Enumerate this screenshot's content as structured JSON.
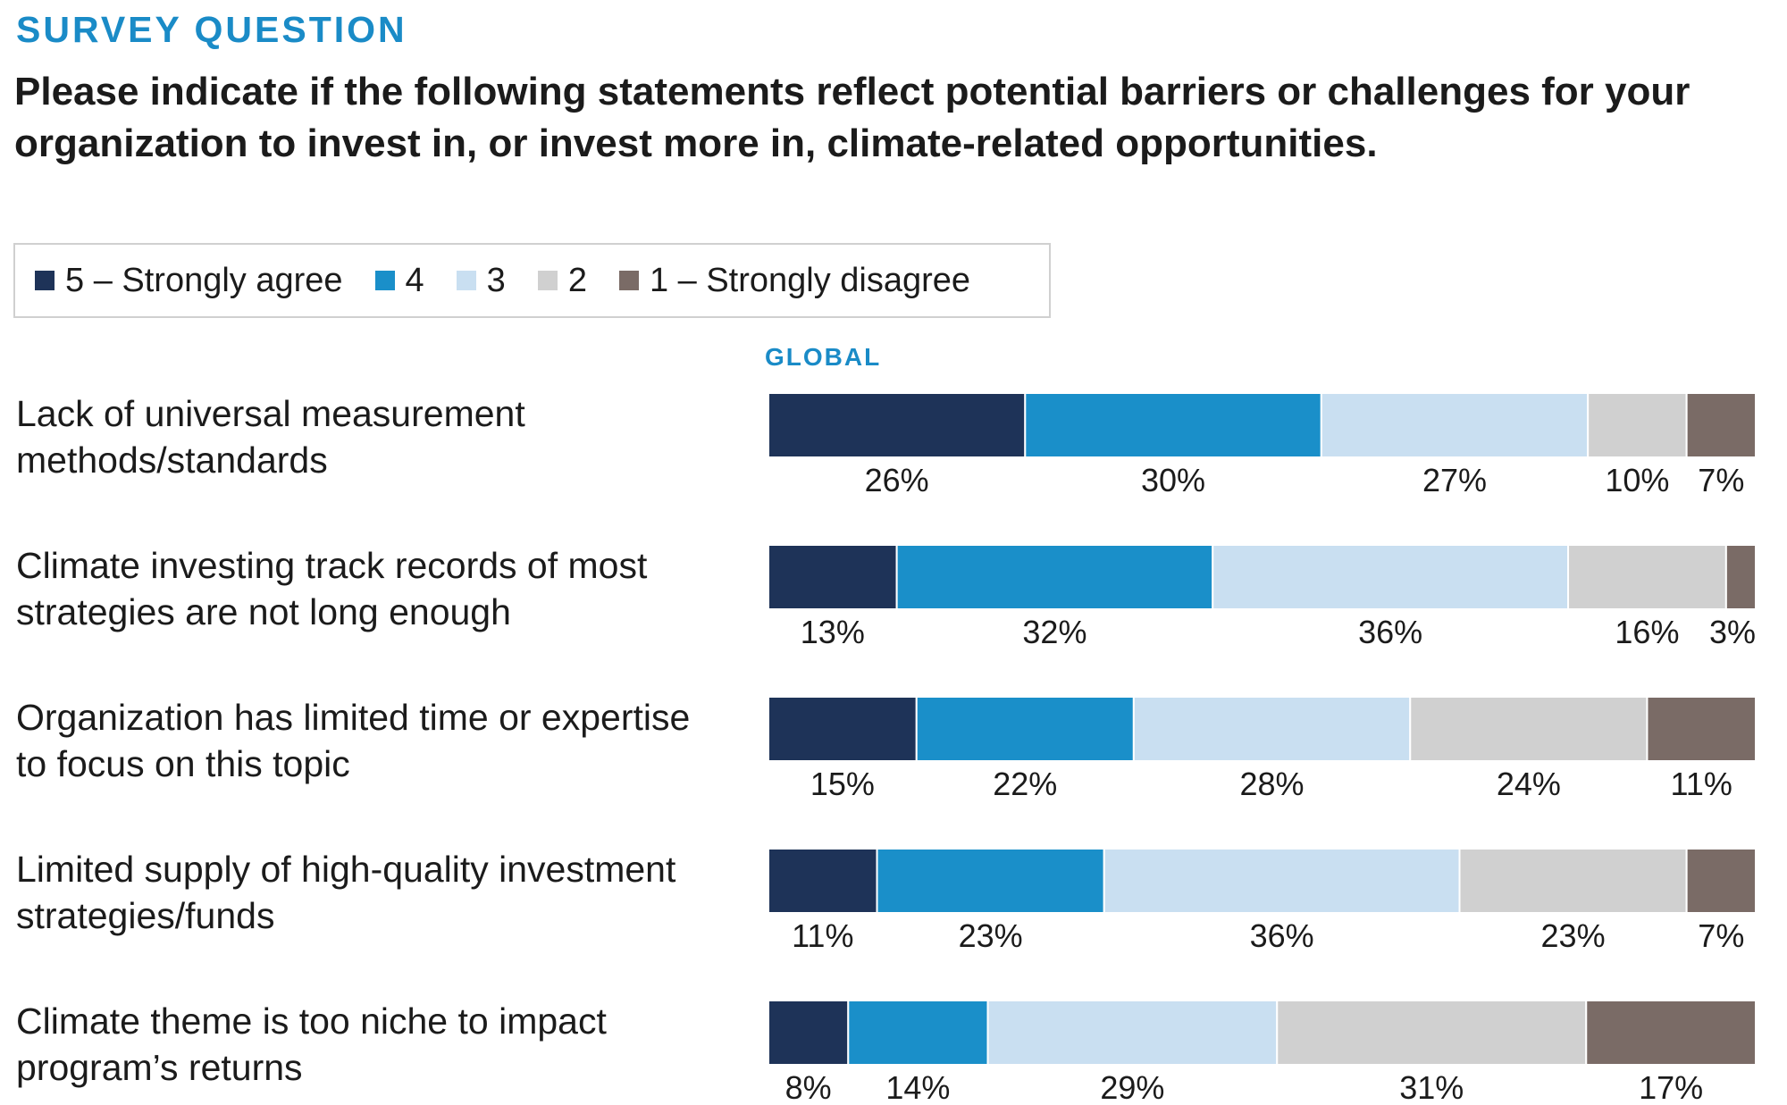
{
  "kicker": "SURVEY QUESTION",
  "headline": "Please indicate if the following statements reflect potential barriers or challenges for your organization to invest in, or invest more in, climate-related opportunities.",
  "region_label": "GLOBAL",
  "chart_data": {
    "type": "bar",
    "orientation": "horizontal",
    "stacked": true,
    "percent_suffix": "%",
    "categories": [
      "Lack of universal measurement methods/standards",
      "Climate investing track records of most strategies are not long enough",
      "Organization has limited time or expertise to focus on this topic",
      "Limited supply of high-quality investment strategies/funds",
      "Climate theme is too niche to impact program’s returns"
    ],
    "series": [
      {
        "name": "5 – Strongly agree",
        "color": "#1e3358",
        "values": [
          26,
          13,
          15,
          11,
          8
        ]
      },
      {
        "name": "4",
        "color": "#1a8fc9",
        "values": [
          30,
          32,
          22,
          23,
          14
        ]
      },
      {
        "name": "3",
        "color": "#c9dff1",
        "values": [
          27,
          36,
          28,
          36,
          29
        ]
      },
      {
        "name": "2",
        "color": "#d0d0d0",
        "values": [
          10,
          16,
          24,
          23,
          31
        ]
      },
      {
        "name": "1 – Strongly disagree",
        "color": "#7a6b66",
        "values": [
          7,
          3,
          11,
          7,
          17
        ]
      }
    ],
    "legend_position": "top-left",
    "grid": false
  }
}
